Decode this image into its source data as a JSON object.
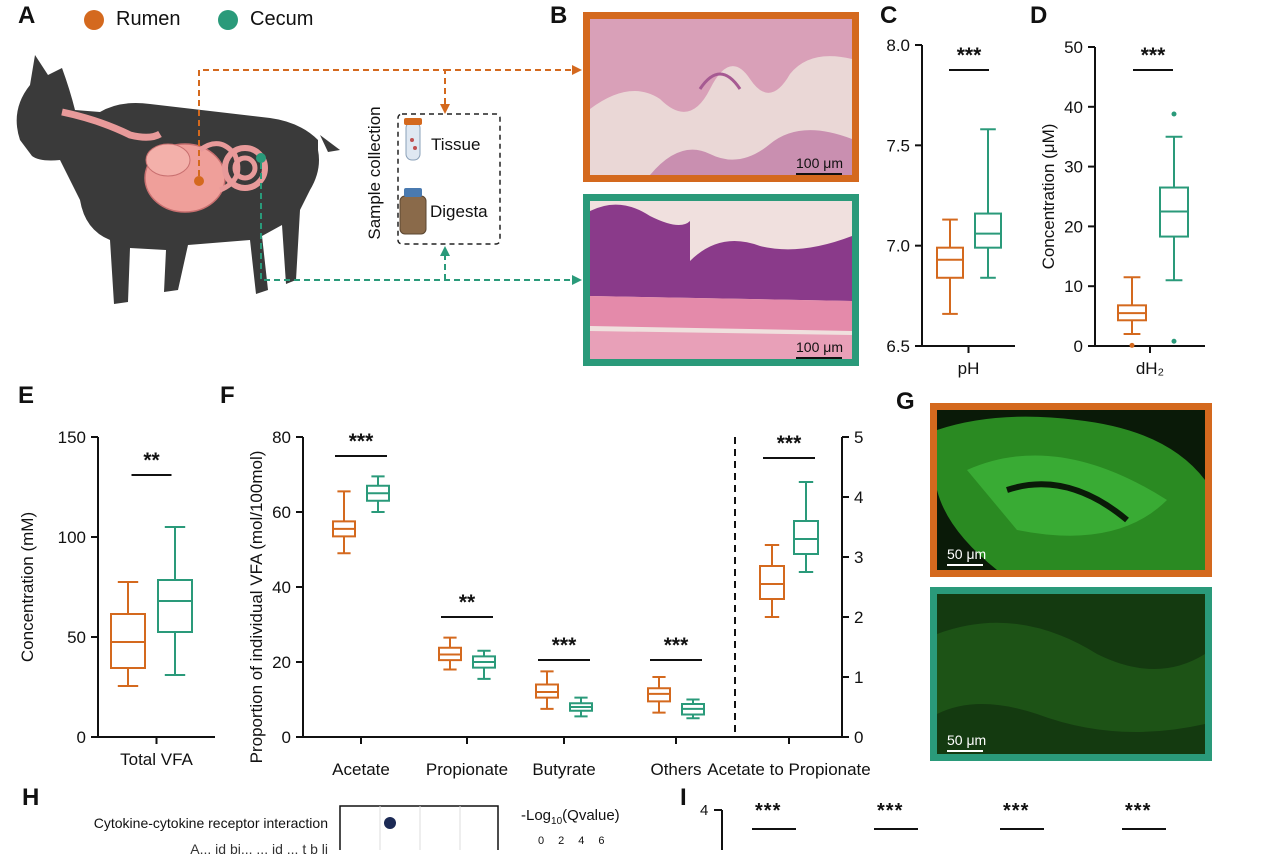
{
  "colors": {
    "rumen": "#d4691e",
    "cecum": "#2a9a7a",
    "text": "#111111"
  },
  "panel_A": {
    "letter": "A",
    "legend": [
      {
        "label": "Rumen",
        "color": "#d4691e"
      },
      {
        "label": "Cecum",
        "color": "#2a9a7a"
      }
    ],
    "sample_collection": "Sample collection",
    "tissue": "Tissue",
    "digesta": "Digesta"
  },
  "panel_B": {
    "letter": "B",
    "scale_top": "100 μm",
    "scale_bottom": "100 μm"
  },
  "panel_G": {
    "letter": "G",
    "scale_top": "50 μm",
    "scale_bottom": "50 μm"
  },
  "panel_H": {
    "letter": "H",
    "row1": "Cytokine-cytokine receptor interaction",
    "row2_partial": "A... id bi... ... id ... t b li",
    "legend_title_prefix": "-Log",
    "legend_title_sub": "10",
    "legend_title_suffix": "(Qvalue)",
    "legend_ticks": [
      "0",
      "2",
      "4",
      "6"
    ]
  },
  "panel_I": {
    "letter": "I",
    "y_top": "4",
    "sig": [
      "***",
      "***",
      "***",
      "***"
    ]
  },
  "chart_data": [
    {
      "panel": "C",
      "type": "box",
      "xlabel": "pH",
      "ylabel": "",
      "ylim": [
        6.5,
        8.0
      ],
      "yticks": [
        "6.5",
        "7.0",
        "7.5",
        "8.0"
      ],
      "significance": "***",
      "groups": [
        {
          "name": "Rumen",
          "min": 6.66,
          "q1": 6.84,
          "median": 6.93,
          "q3": 6.99,
          "max": 7.13
        },
        {
          "name": "Cecum",
          "min": 6.84,
          "q1": 6.99,
          "median": 7.06,
          "q3": 7.16,
          "max": 7.58
        }
      ]
    },
    {
      "panel": "D",
      "type": "box",
      "xlabel": "dH₂",
      "ylabel": "Concentration (μM)",
      "ylim": [
        0,
        50
      ],
      "yticks": [
        "0",
        "10",
        "20",
        "30",
        "40",
        "50"
      ],
      "significance": "***",
      "groups": [
        {
          "name": "Rumen",
          "min": 2.0,
          "q1": 4.3,
          "median": 5.5,
          "q3": 6.8,
          "max": 11.5,
          "outliers": [
            0.1
          ]
        },
        {
          "name": "Cecum",
          "min": 11.0,
          "q1": 18.3,
          "median": 22.5,
          "q3": 26.5,
          "max": 35.0,
          "outliers": [
            38.8,
            0.8
          ]
        }
      ]
    },
    {
      "panel": "E",
      "type": "box",
      "xlabel": "Total VFA",
      "ylabel": "Concentration (mM)",
      "ylim": [
        0,
        150
      ],
      "yticks": [
        "0",
        "50",
        "100",
        "150"
      ],
      "significance": "**",
      "groups": [
        {
          "name": "Rumen",
          "min": 25.5,
          "q1": 34.5,
          "median": 47.5,
          "q3": 61.5,
          "max": 77.5
        },
        {
          "name": "Cecum",
          "min": 31.0,
          "q1": 52.5,
          "median": 68.0,
          "q3": 78.5,
          "max": 105.0
        }
      ]
    },
    {
      "panel": "F",
      "type": "box",
      "ylabel": "Proportion of individual VFA (mol/100mol)",
      "ylim": [
        0,
        80
      ],
      "yticks": [
        "0",
        "20",
        "40",
        "60",
        "80"
      ],
      "y2lim": [
        0,
        5
      ],
      "y2ticks": [
        "0",
        "1",
        "2",
        "3",
        "4",
        "5"
      ],
      "categories": [
        "Acetate",
        "Propionate",
        "Butyrate",
        "Others",
        "Acetate to Propionate"
      ],
      "significance": [
        "***",
        "**",
        "***",
        "***",
        "***"
      ],
      "groups": [
        {
          "category": "Acetate",
          "name": "Rumen",
          "min": 49.0,
          "q1": 53.5,
          "median": 55.5,
          "q3": 57.5,
          "max": 65.5
        },
        {
          "category": "Acetate",
          "name": "Cecum",
          "min": 60.0,
          "q1": 63.0,
          "median": 65.0,
          "q3": 67.0,
          "max": 69.5
        },
        {
          "category": "Propionate",
          "name": "Rumen",
          "min": 18.0,
          "q1": 20.5,
          "median": 22.0,
          "q3": 23.8,
          "max": 26.5
        },
        {
          "category": "Propionate",
          "name": "Cecum",
          "min": 15.5,
          "q1": 18.5,
          "median": 20.0,
          "q3": 21.5,
          "max": 23.0
        },
        {
          "category": "Butyrate",
          "name": "Rumen",
          "min": 7.5,
          "q1": 10.5,
          "median": 12.0,
          "q3": 14.0,
          "max": 17.5
        },
        {
          "category": "Butyrate",
          "name": "Cecum",
          "min": 5.5,
          "q1": 7.0,
          "median": 8.0,
          "q3": 9.0,
          "max": 10.5
        },
        {
          "category": "Others",
          "name": "Rumen",
          "min": 6.5,
          "q1": 9.5,
          "median": 11.5,
          "q3": 13.0,
          "max": 16.0
        },
        {
          "category": "Others",
          "name": "Cecum",
          "min": 5.0,
          "q1": 6.0,
          "median": 7.5,
          "q3": 8.8,
          "max": 10.0
        },
        {
          "category": "Acetate to Propionate",
          "name": "Rumen",
          "axis": "right",
          "min": 2.0,
          "q1": 2.3,
          "median": 2.55,
          "q3": 2.85,
          "max": 3.2
        },
        {
          "category": "Acetate to Propionate",
          "name": "Cecum",
          "axis": "right",
          "min": 2.75,
          "q1": 3.05,
          "median": 3.3,
          "q3": 3.6,
          "max": 4.25
        }
      ]
    }
  ]
}
